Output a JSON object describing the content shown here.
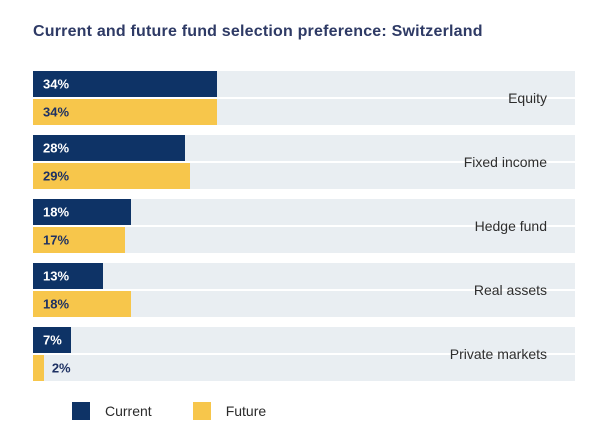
{
  "title": "Current and future fund selection preference: Switzerland",
  "colors": {
    "current": "#0e3366",
    "future": "#f7c64b",
    "track": "#e9eef2",
    "title_text": "#2e3a65",
    "label_on_current": "#ffffff",
    "label_on_future": "#1e3163",
    "label_outside": "#1e3163",
    "category_text": "#2e2e2e"
  },
  "chart_data": {
    "type": "bar",
    "orientation": "horizontal",
    "title": "Current and future fund selection preference: Switzerland",
    "categories": [
      "Equity",
      "Fixed income",
      "Hedge fund",
      "Real assets",
      "Private markets"
    ],
    "series": [
      {
        "name": "Current",
        "values": [
          34,
          28,
          18,
          13,
          7
        ]
      },
      {
        "name": "Future",
        "values": [
          34,
          29,
          17,
          18,
          2
        ]
      }
    ],
    "value_suffix": "%",
    "xlim": [
      0,
      100
    ],
    "grid": false,
    "legend_position": "bottom",
    "data_labels": [
      "34%",
      "34%",
      "28%",
      "29%",
      "18%",
      "17%",
      "13%",
      "18%",
      "7%",
      "2%"
    ]
  }
}
